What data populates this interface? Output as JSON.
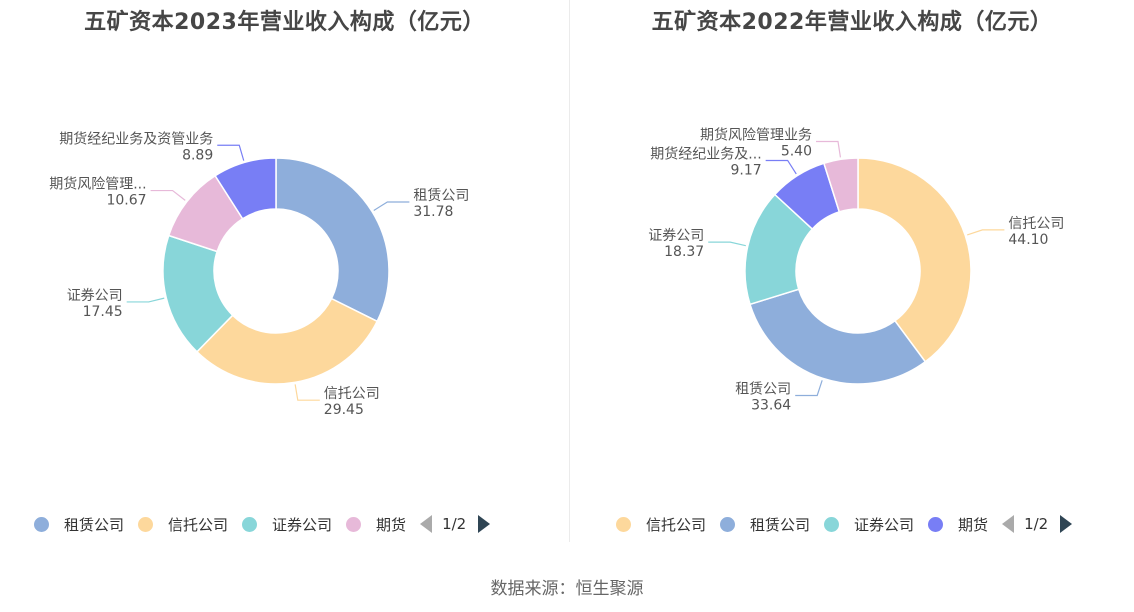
{
  "charts": [
    {
      "title": "五矿资本2023年营业收入构成（亿元）",
      "legend": {
        "items": [
          {
            "label": "租赁公司",
            "color": "#8eaedb"
          },
          {
            "label": "信托公司",
            "color": "#fdd89c"
          },
          {
            "label": "证券公司",
            "color": "#88d6d9"
          },
          {
            "label": "期货",
            "color": "#e7b9d9"
          }
        ],
        "page": "1/2"
      }
    },
    {
      "title": "五矿资本2022年营业收入构成（亿元）",
      "legend": {
        "items": [
          {
            "label": "信托公司",
            "color": "#fdd89c"
          },
          {
            "label": "租赁公司",
            "color": "#8eaedb"
          },
          {
            "label": "证券公司",
            "color": "#88d6d9"
          },
          {
            "label": "期货",
            "color": "#787ef5"
          }
        ],
        "page": "1/2"
      }
    }
  ],
  "source": "数据来源：恒生聚源",
  "chart_data": [
    {
      "type": "pie",
      "title": "五矿资本2023年营业收入构成（亿元）",
      "donut": true,
      "categories": [
        "租赁公司",
        "信托公司",
        "证券公司",
        "期货风险管理业务",
        "期货经纪业务及资管业务"
      ],
      "display_labels": [
        "租赁公司",
        "信托公司",
        "证券公司",
        "期货风险管理...",
        "期货经纪业务及资管业务"
      ],
      "values": [
        31.78,
        29.45,
        17.45,
        10.67,
        8.89
      ],
      "value_labels": [
        "31.78",
        "29.45",
        "17.45",
        "10.67",
        "8.89"
      ],
      "colors": [
        "#8eaedb",
        "#fdd89c",
        "#88d6d9",
        "#e7b9d9",
        "#787ef5"
      ],
      "legend_position": "bottom"
    },
    {
      "type": "pie",
      "title": "五矿资本2022年营业收入构成（亿元）",
      "donut": true,
      "categories": [
        "信托公司",
        "租赁公司",
        "证券公司",
        "期货经纪业务及资管业务",
        "期货风险管理业务"
      ],
      "display_labels": [
        "信托公司",
        "租赁公司",
        "证券公司",
        "期货经纪业务及...",
        "期货风险管理业务"
      ],
      "values": [
        44.1,
        33.64,
        18.37,
        9.17,
        5.4
      ],
      "value_labels": [
        "44.10",
        "33.64",
        "18.37",
        "9.17",
        "5.40"
      ],
      "colors": [
        "#fdd89c",
        "#8eaedb",
        "#88d6d9",
        "#787ef5",
        "#e7b9d9"
      ],
      "legend_position": "bottom"
    }
  ]
}
